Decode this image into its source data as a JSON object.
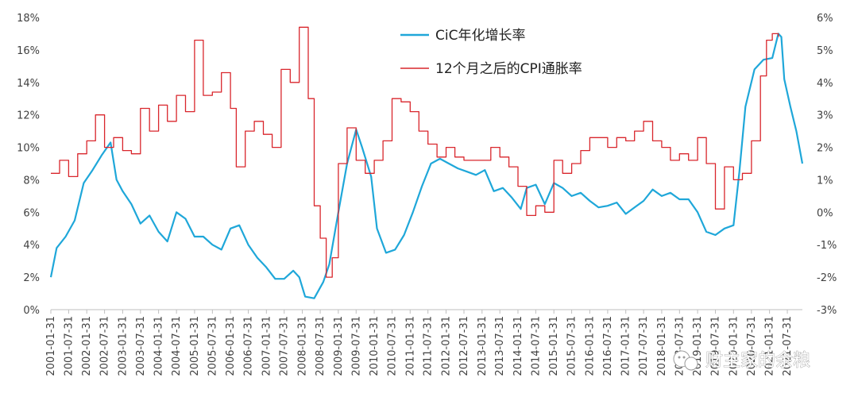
{
  "watermark": {
    "text": "财主家的余粮",
    "icon": "wechat-icon"
  },
  "chart_data": {
    "type": "line",
    "title": "",
    "xlabel": "",
    "ylabel": "",
    "legend_position": "top-center",
    "grid": false,
    "y_left": {
      "ticks": [
        "0%",
        "2%",
        "4%",
        "6%",
        "8%",
        "10%",
        "12%",
        "14%",
        "16%",
        "18%"
      ],
      "range": [
        0,
        18
      ]
    },
    "y_right": {
      "ticks": [
        "-3%",
        "-2%",
        "-1%",
        "0%",
        "1%",
        "2%",
        "3%",
        "4%",
        "5%",
        "6%"
      ],
      "range": [
        -3,
        6
      ]
    },
    "x_ticks": [
      "2001-01-31",
      "2001-07-31",
      "2002-01-31",
      "2002-07-31",
      "2003-01-31",
      "2003-07-31",
      "2004-01-31",
      "2004-07-31",
      "2005-01-31",
      "2005-07-31",
      "2006-01-31",
      "2006-07-31",
      "2007-01-31",
      "2007-07-31",
      "2008-01-31",
      "2008-07-31",
      "2009-01-31",
      "2009-07-31",
      "2010-01-31",
      "2010-07-31",
      "2011-01-31",
      "2011-07-31",
      "2012-01-31",
      "2012-07-31",
      "2013-01-31",
      "2013-07-31",
      "2014-01-31",
      "2014-07-31",
      "2015-01-31",
      "2015-07-31",
      "2016-01-31",
      "2016-07-31",
      "2017-01-31",
      "2017-07-31",
      "2018-01-31",
      "2018-07-31",
      "2019-01-31",
      "2019-07-31",
      "2020-01-31",
      "2020-07-31",
      "2021-01-31",
      "2021-07-31"
    ],
    "series": [
      {
        "name": "CiC年化增长率",
        "color": "#1fa7d9",
        "axis": "left",
        "points": [
          [
            "2001-01-31",
            2.0
          ],
          [
            "2001-03-31",
            3.8
          ],
          [
            "2001-06-30",
            4.5
          ],
          [
            "2001-09-30",
            5.5
          ],
          [
            "2001-12-31",
            7.8
          ],
          [
            "2002-03-31",
            8.6
          ],
          [
            "2002-06-30",
            9.5
          ],
          [
            "2002-09-30",
            10.3
          ],
          [
            "2002-11-30",
            8.0
          ],
          [
            "2003-01-31",
            7.3
          ],
          [
            "2003-04-30",
            6.5
          ],
          [
            "2003-07-31",
            5.3
          ],
          [
            "2003-10-31",
            5.8
          ],
          [
            "2004-01-31",
            4.8
          ],
          [
            "2004-04-30",
            4.2
          ],
          [
            "2004-07-31",
            6.0
          ],
          [
            "2004-10-31",
            5.6
          ],
          [
            "2005-01-31",
            4.5
          ],
          [
            "2005-04-30",
            4.5
          ],
          [
            "2005-07-31",
            4.0
          ],
          [
            "2005-10-31",
            3.7
          ],
          [
            "2006-01-31",
            5.0
          ],
          [
            "2006-04-30",
            5.2
          ],
          [
            "2006-07-31",
            4.0
          ],
          [
            "2006-10-31",
            3.2
          ],
          [
            "2007-01-31",
            2.6
          ],
          [
            "2007-04-30",
            1.9
          ],
          [
            "2007-07-31",
            1.9
          ],
          [
            "2007-10-31",
            2.4
          ],
          [
            "2007-12-31",
            2.0
          ],
          [
            "2008-02-29",
            0.8
          ],
          [
            "2008-05-31",
            0.7
          ],
          [
            "2008-08-31",
            1.7
          ],
          [
            "2008-10-31",
            2.8
          ],
          [
            "2009-01-31",
            6.0
          ],
          [
            "2009-04-30",
            9.0
          ],
          [
            "2009-07-31",
            11.1
          ],
          [
            "2009-09-30",
            10.0
          ],
          [
            "2009-12-31",
            8.2
          ],
          [
            "2010-02-28",
            5.0
          ],
          [
            "2010-05-31",
            3.5
          ],
          [
            "2010-08-31",
            3.7
          ],
          [
            "2010-11-30",
            4.6
          ],
          [
            "2011-02-28",
            6.0
          ],
          [
            "2011-05-31",
            7.6
          ],
          [
            "2011-08-31",
            9.0
          ],
          [
            "2011-11-30",
            9.3
          ],
          [
            "2012-02-29",
            9.0
          ],
          [
            "2012-05-31",
            8.7
          ],
          [
            "2012-08-31",
            8.5
          ],
          [
            "2012-11-30",
            8.3
          ],
          [
            "2013-02-28",
            8.6
          ],
          [
            "2013-05-31",
            7.3
          ],
          [
            "2013-08-31",
            7.5
          ],
          [
            "2013-11-30",
            6.9
          ],
          [
            "2014-02-28",
            6.2
          ],
          [
            "2014-04-30",
            7.5
          ],
          [
            "2014-07-31",
            7.7
          ],
          [
            "2014-10-31",
            6.5
          ],
          [
            "2015-01-31",
            7.8
          ],
          [
            "2015-04-30",
            7.5
          ],
          [
            "2015-07-31",
            7.0
          ],
          [
            "2015-10-31",
            7.2
          ],
          [
            "2016-01-31",
            6.7
          ],
          [
            "2016-04-30",
            6.3
          ],
          [
            "2016-07-31",
            6.4
          ],
          [
            "2016-10-31",
            6.6
          ],
          [
            "2017-01-31",
            5.9
          ],
          [
            "2017-04-30",
            6.3
          ],
          [
            "2017-07-31",
            6.7
          ],
          [
            "2017-10-31",
            7.4
          ],
          [
            "2018-01-31",
            7.0
          ],
          [
            "2018-04-30",
            7.2
          ],
          [
            "2018-07-31",
            6.8
          ],
          [
            "2018-10-31",
            6.8
          ],
          [
            "2019-01-31",
            6.0
          ],
          [
            "2019-04-30",
            4.8
          ],
          [
            "2019-07-31",
            4.6
          ],
          [
            "2019-10-31",
            5.0
          ],
          [
            "2020-01-31",
            5.2
          ],
          [
            "2020-03-31",
            8.5
          ],
          [
            "2020-05-31",
            12.5
          ],
          [
            "2020-08-31",
            14.8
          ],
          [
            "2020-11-30",
            15.4
          ],
          [
            "2021-02-28",
            15.5
          ],
          [
            "2021-04-30",
            17.0
          ],
          [
            "2021-05-31",
            16.8
          ],
          [
            "2021-06-30",
            14.2
          ],
          [
            "2021-08-31",
            12.5
          ],
          [
            "2021-10-31",
            11.0
          ],
          [
            "2021-12-31",
            9.0
          ]
        ]
      },
      {
        "name": "12个月之后的CPI通胀率",
        "color": "#d9262c",
        "axis": "right",
        "points": [
          [
            "2001-01-31",
            1.2
          ],
          [
            "2001-04-30",
            1.6
          ],
          [
            "2001-07-31",
            1.1
          ],
          [
            "2001-10-31",
            1.8
          ],
          [
            "2002-01-31",
            2.2
          ],
          [
            "2002-04-30",
            3.0
          ],
          [
            "2002-07-31",
            2.0
          ],
          [
            "2002-10-31",
            2.3
          ],
          [
            "2003-01-31",
            1.9
          ],
          [
            "2003-04-30",
            1.8
          ],
          [
            "2003-07-31",
            3.2
          ],
          [
            "2003-10-31",
            2.5
          ],
          [
            "2004-01-31",
            3.3
          ],
          [
            "2004-04-30",
            2.8
          ],
          [
            "2004-07-31",
            3.6
          ],
          [
            "2004-10-31",
            3.1
          ],
          [
            "2005-01-31",
            5.3
          ],
          [
            "2005-04-30",
            3.6
          ],
          [
            "2005-07-31",
            3.7
          ],
          [
            "2005-10-31",
            4.3
          ],
          [
            "2006-01-31",
            3.2
          ],
          [
            "2006-03-31",
            1.4
          ],
          [
            "2006-06-30",
            2.5
          ],
          [
            "2006-09-30",
            2.8
          ],
          [
            "2006-12-31",
            2.4
          ],
          [
            "2007-03-31",
            2.0
          ],
          [
            "2007-06-30",
            4.4
          ],
          [
            "2007-09-30",
            4.0
          ],
          [
            "2007-12-31",
            5.7
          ],
          [
            "2008-03-31",
            3.5
          ],
          [
            "2008-05-31",
            0.2
          ],
          [
            "2008-07-31",
            -0.8
          ],
          [
            "2008-09-30",
            -2.0
          ],
          [
            "2008-11-30",
            -1.4
          ],
          [
            "2009-01-31",
            1.5
          ],
          [
            "2009-04-30",
            2.6
          ],
          [
            "2009-07-31",
            1.6
          ],
          [
            "2009-10-31",
            1.2
          ],
          [
            "2010-01-31",
            1.6
          ],
          [
            "2010-04-30",
            2.2
          ],
          [
            "2010-07-31",
            3.5
          ],
          [
            "2010-10-31",
            3.4
          ],
          [
            "2011-01-31",
            3.1
          ],
          [
            "2011-04-30",
            2.5
          ],
          [
            "2011-07-31",
            2.1
          ],
          [
            "2011-10-31",
            1.7
          ],
          [
            "2012-01-31",
            2.0
          ],
          [
            "2012-04-30",
            1.7
          ],
          [
            "2012-07-31",
            1.6
          ],
          [
            "2012-10-31",
            1.6
          ],
          [
            "2013-01-31",
            1.6
          ],
          [
            "2013-04-30",
            2.0
          ],
          [
            "2013-07-31",
            1.7
          ],
          [
            "2013-10-31",
            1.4
          ],
          [
            "2014-01-31",
            0.8
          ],
          [
            "2014-04-30",
            -0.1
          ],
          [
            "2014-07-31",
            0.2
          ],
          [
            "2014-10-31",
            0.0
          ],
          [
            "2015-01-31",
            1.6
          ],
          [
            "2015-04-30",
            1.2
          ],
          [
            "2015-07-31",
            1.5
          ],
          [
            "2015-10-31",
            1.9
          ],
          [
            "2016-01-31",
            2.3
          ],
          [
            "2016-04-30",
            2.3
          ],
          [
            "2016-07-31",
            2.0
          ],
          [
            "2016-10-31",
            2.3
          ],
          [
            "2017-01-31",
            2.2
          ],
          [
            "2017-04-30",
            2.5
          ],
          [
            "2017-07-31",
            2.8
          ],
          [
            "2017-10-31",
            2.2
          ],
          [
            "2018-01-31",
            2.0
          ],
          [
            "2018-04-30",
            1.6
          ],
          [
            "2018-07-31",
            1.8
          ],
          [
            "2018-10-31",
            1.6
          ],
          [
            "2019-01-31",
            2.3
          ],
          [
            "2019-04-30",
            1.5
          ],
          [
            "2019-07-31",
            0.1
          ],
          [
            "2019-10-31",
            1.4
          ],
          [
            "2020-01-31",
            1.0
          ],
          [
            "2020-04-30",
            1.2
          ],
          [
            "2020-07-31",
            2.2
          ],
          [
            "2020-10-31",
            4.2
          ],
          [
            "2020-12-31",
            5.3
          ],
          [
            "2021-02-28",
            5.5
          ],
          [
            "2021-04-30",
            5.4
          ]
        ]
      }
    ]
  }
}
